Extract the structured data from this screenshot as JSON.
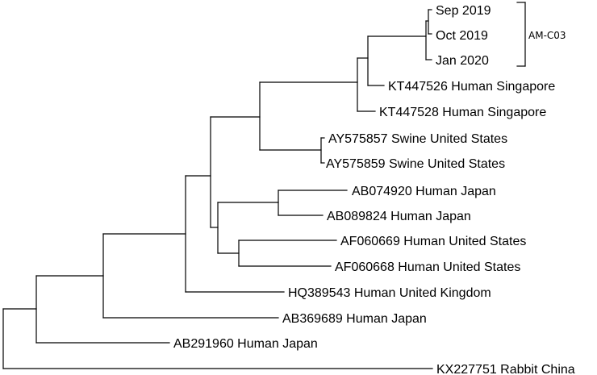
{
  "tree": {
    "taxa": [
      {
        "key": "sep2019",
        "label": "Sep 2019"
      },
      {
        "key": "oct2019",
        "label": "Oct 2019"
      },
      {
        "key": "jan2020",
        "label": "Jan 2020"
      },
      {
        "key": "kt447526",
        "label": "KT447526 Human Singapore"
      },
      {
        "key": "kt447528",
        "label": "KT447528 Human Singapore"
      },
      {
        "key": "ay575857",
        "label": "AY575857 Swine United States"
      },
      {
        "key": "ay575859",
        "label": "AY575859 Swine United States"
      },
      {
        "key": "ab074920",
        "label": "AB074920 Human Japan"
      },
      {
        "key": "ab089824",
        "label": "AB089824 Human Japan"
      },
      {
        "key": "af060669",
        "label": "AF060669 Human United States"
      },
      {
        "key": "af060668",
        "label": "AF060668 Human United States"
      },
      {
        "key": "hq389543",
        "label": "HQ389543 Human United Kingdom"
      },
      {
        "key": "ab369689",
        "label": "AB369689 Human Japan"
      },
      {
        "key": "ab291960",
        "label": "AB291960 Human Japan"
      },
      {
        "key": "kx227751",
        "label": "KX227751 Rabbit China"
      }
    ],
    "clade_label": "AM-C03"
  }
}
